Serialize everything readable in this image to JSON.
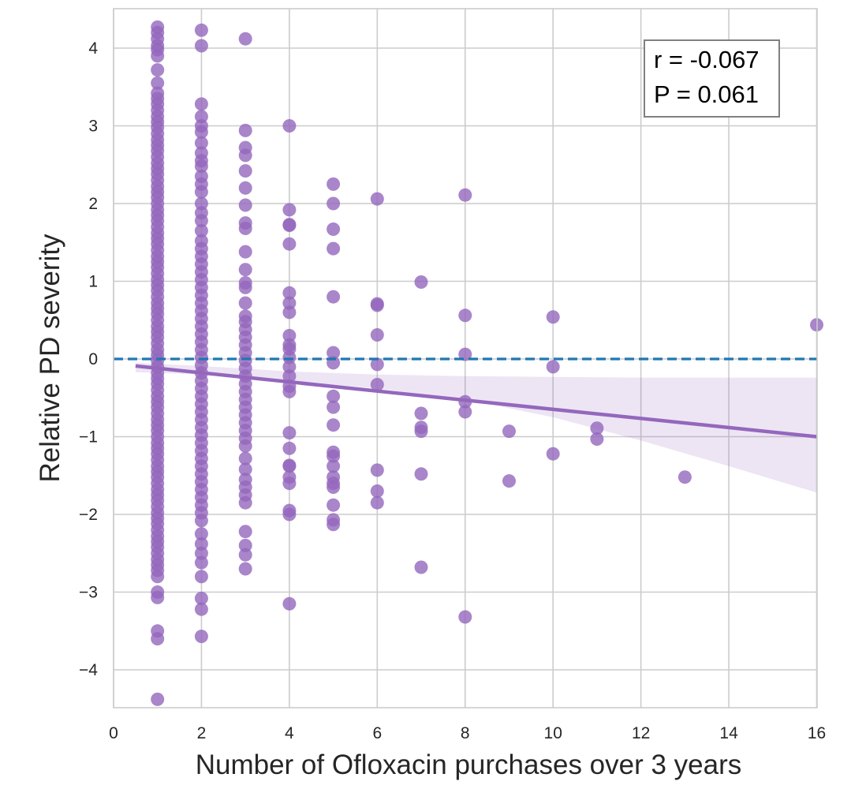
{
  "chart_data": {
    "type": "scatter",
    "xlabel": "Number of  Ofloxacin purchases over 3 years",
    "ylabel": "Relative PD severity",
    "xlim": [
      0,
      16
    ],
    "ylim": [
      -4.5,
      4.5
    ],
    "xticks": [
      0,
      2,
      4,
      6,
      8,
      10,
      12,
      14,
      16
    ],
    "yticks": [
      -4,
      -3,
      -2,
      -1,
      0,
      1,
      2,
      3,
      4
    ],
    "ytick_labels": [
      "−4",
      "−3",
      "−2",
      "−1",
      "0",
      "1",
      "2",
      "3",
      "4"
    ],
    "grid": true,
    "annotation": {
      "r": "r = -0.067",
      "p": "P = 0.061",
      "placement": "top-right"
    },
    "reference_line": {
      "y": 0,
      "style": "dashed",
      "color": "#1f77b4"
    },
    "regression": {
      "x": [
        0.5,
        16
      ],
      "y": [
        -0.09,
        -1.0
      ],
      "ci_x": [
        0.5,
        2,
        4,
        6,
        8,
        10,
        12,
        14,
        16
      ],
      "ci_lower": [
        -0.17,
        -0.2,
        -0.28,
        -0.38,
        -0.52,
        -0.75,
        -1.05,
        -1.38,
        -1.72
      ],
      "ci_upper": [
        -0.05,
        -0.09,
        -0.16,
        -0.2,
        -0.22,
        -0.23,
        -0.24,
        -0.24,
        -0.24
      ],
      "color": "#9467bd",
      "band_color": "#9467bd"
    },
    "point_color": "#9467bd",
    "marker_at_zero": {
      "x": 0,
      "y": 0
    },
    "series": [
      {
        "x": 1,
        "values": [
          4.27,
          4.2,
          4.12,
          4.03,
          3.98,
          3.9,
          3.72,
          3.55,
          3.42,
          3.35,
          3.28,
          3.2,
          3.12,
          3.05,
          2.98,
          2.9,
          2.82,
          2.75,
          2.68,
          2.6,
          2.52,
          2.45,
          2.38,
          2.3,
          2.22,
          2.15,
          2.08,
          2.0,
          1.92,
          1.85,
          1.78,
          1.7,
          1.62,
          1.55,
          1.48,
          1.4,
          1.32,
          1.25,
          1.18,
          1.1,
          1.02,
          0.95,
          0.88,
          0.8,
          0.72,
          0.65,
          0.58,
          0.5,
          0.42,
          0.35,
          0.28,
          0.2,
          0.12,
          0.05,
          -0.02,
          -0.1,
          -0.18,
          -0.25,
          -0.32,
          -0.4,
          -0.48,
          -0.55,
          -0.62,
          -0.7,
          -0.78,
          -0.85,
          -0.92,
          -1.0,
          -1.08,
          -1.15,
          -1.22,
          -1.3,
          -1.38,
          -1.45,
          -1.52,
          -1.6,
          -1.68,
          -1.75,
          -1.82,
          -1.9,
          -1.98,
          -2.05,
          -2.12,
          -2.2,
          -2.28,
          -2.35,
          -2.42,
          -2.5,
          -2.58,
          -2.65,
          -2.72,
          -2.8,
          -3.0,
          -3.07,
          -3.5,
          -3.6,
          -4.38
        ]
      },
      {
        "x": 2,
        "values": [
          4.23,
          4.03,
          3.28,
          3.12,
          3.0,
          2.92,
          2.78,
          2.65,
          2.55,
          2.48,
          2.35,
          2.25,
          2.15,
          2.0,
          1.88,
          1.78,
          1.65,
          1.52,
          1.42,
          1.32,
          1.22,
          1.12,
          1.02,
          0.92,
          0.82,
          0.72,
          0.62,
          0.52,
          0.42,
          0.32,
          0.22,
          0.12,
          0.02,
          -0.08,
          -0.18,
          -0.28,
          -0.38,
          -0.48,
          -0.58,
          -0.68,
          -0.78,
          -0.88,
          -0.98,
          -1.08,
          -1.18,
          -1.28,
          -1.38,
          -1.48,
          -1.58,
          -1.68,
          -1.78,
          -1.88,
          -1.98,
          -2.08,
          -2.25,
          -2.38,
          -2.5,
          -2.62,
          -2.8,
          -3.08,
          -3.22,
          -3.57
        ]
      },
      {
        "x": 3,
        "values": [
          4.12,
          2.94,
          2.72,
          2.62,
          2.42,
          2.2,
          1.98,
          1.75,
          1.68,
          1.38,
          1.15,
          0.98,
          0.92,
          0.72,
          0.55,
          0.48,
          0.38,
          0.28,
          0.18,
          0.08,
          -0.02,
          -0.12,
          -0.22,
          -0.32,
          -0.42,
          -0.52,
          -0.62,
          -0.72,
          -0.82,
          -0.92,
          -1.02,
          -1.12,
          -1.28,
          -1.42,
          -1.55,
          -1.65,
          -1.75,
          -1.85,
          -2.22,
          -2.4,
          -2.52,
          -2.7
        ]
      },
      {
        "x": 4,
        "values": [
          3.0,
          1.92,
          1.73,
          1.72,
          1.48,
          0.85,
          0.72,
          0.6,
          0.3,
          0.18,
          0.13,
          0.02,
          -0.1,
          -0.22,
          -0.35,
          -0.42,
          -0.95,
          -1.15,
          -1.37,
          -1.38,
          -1.52,
          -1.6,
          -1.95,
          -2.0,
          -3.15
        ]
      },
      {
        "x": 5,
        "values": [
          2.25,
          2.0,
          1.67,
          1.42,
          0.8,
          0.08,
          -0.05,
          -0.48,
          -0.62,
          -0.85,
          -1.2,
          -1.25,
          -1.38,
          -1.52,
          -1.6,
          -1.65,
          -1.88,
          -2.07,
          -2.13
        ]
      },
      {
        "x": 6,
        "values": [
          2.06,
          0.71,
          0.69,
          0.31,
          -0.07,
          -0.33,
          -1.43,
          -1.7,
          -1.85
        ]
      },
      {
        "x": 7,
        "values": [
          0.99,
          -0.7,
          -0.88,
          -0.93,
          -1.48,
          -2.68
        ]
      },
      {
        "x": 8,
        "values": [
          2.11,
          0.56,
          0.06,
          -0.55,
          -0.68,
          -3.32
        ]
      },
      {
        "x": 9,
        "values": [
          -0.93,
          -1.57
        ]
      },
      {
        "x": 10,
        "values": [
          0.54,
          -0.1,
          -1.22
        ]
      },
      {
        "x": 11,
        "values": [
          -0.89,
          -1.03
        ]
      },
      {
        "x": 13,
        "values": [
          -1.52
        ]
      },
      {
        "x": 16,
        "values": [
          0.44
        ]
      }
    ]
  }
}
